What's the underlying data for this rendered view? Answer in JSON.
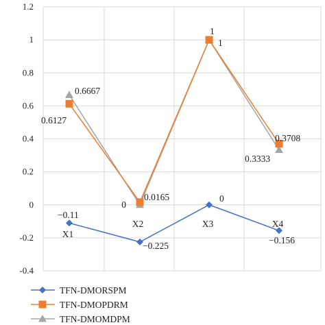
{
  "chart_data": {
    "type": "line",
    "categories": [
      "X1",
      "X2",
      "X3",
      "X4"
    ],
    "ylim": [
      -0.4,
      1.2
    ],
    "yticks": [
      "-0.4",
      "-0.2",
      "0",
      "0.2",
      "0.4",
      "0.6",
      "0.8",
      "1",
      "1.2"
    ],
    "grid": true,
    "legend_position": "bottom-left",
    "series": [
      {
        "name": "TFN-DMORSPM",
        "values": [
          -0.11,
          -0.225,
          0,
          -0.156
        ],
        "labels": [
          "−0.11",
          "−0.225",
          "0",
          "−0.156"
        ],
        "color": "#4472C4",
        "marker": "diamond"
      },
      {
        "name": "TFN-DMOPDRM",
        "values": [
          0.6127,
          0.0165,
          1,
          0.3708
        ],
        "labels": [
          "0.6127",
          "0.0165",
          "1",
          "0.3708"
        ],
        "color": "#ED7D31",
        "marker": "square"
      },
      {
        "name": "TFN-DMOMDPM",
        "values": [
          0.6667,
          0,
          1,
          0.3333
        ],
        "labels": [
          "0.6667",
          "0",
          "1",
          "0.3333"
        ],
        "color": "#A5A5A5",
        "marker": "triangle"
      }
    ]
  }
}
